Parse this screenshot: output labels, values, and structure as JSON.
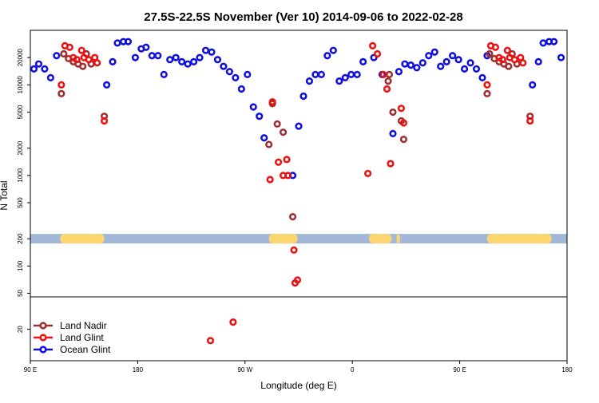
{
  "chart_data": {
    "type": "scatter",
    "title": "27.5S-22.5S November (Ver 10)   2014-09-06 to 2022-02-28",
    "xlabel": "Longitude (deg E)",
    "ylabel": "N Total",
    "x_ticks": [
      {
        "value": 90,
        "label": "90 E"
      },
      {
        "value": 180,
        "label": "180"
      },
      {
        "value": 270,
        "label": "90 W"
      },
      {
        "value": 360,
        "label": "0"
      },
      {
        "value": 450,
        "label": "90 E"
      },
      {
        "value": 540,
        "label": "180"
      }
    ],
    "xlim": [
      90,
      540
    ],
    "y_scale": "log",
    "y_ticks": [
      {
        "value": 20000,
        "label": "20000"
      },
      {
        "value": 10000,
        "label": "10000"
      },
      {
        "value": 5000,
        "label": "5000"
      },
      {
        "value": 2000,
        "label": "2000"
      },
      {
        "value": 1000,
        "label": "1000"
      },
      {
        "value": 500,
        "label": "500"
      },
      {
        "value": 200,
        "label": "200"
      },
      {
        "value": 100,
        "label": "100"
      },
      {
        "value": 50,
        "label": "50"
      },
      {
        "value": 20,
        "label": "20"
      }
    ],
    "ylim": [
      9,
      40000
    ],
    "panel_split": 50,
    "band_value": 200,
    "band_color": "#a3b8d8",
    "land_color": "#fcd670",
    "land_spans": [
      [
        115,
        152
      ],
      [
        290,
        314
      ],
      [
        374,
        393
      ],
      [
        397,
        400
      ],
      [
        473,
        527
      ]
    ],
    "legend": {
      "position": "bottom-left",
      "entries": [
        {
          "name": "Land Nadir",
          "color": "#a03030"
        },
        {
          "name": "Land Glint",
          "color": "#ee1111"
        },
        {
          "name": "Ocean Glint",
          "color": "#1010dd"
        }
      ]
    },
    "series": [
      {
        "name": "Land Nadir",
        "color": "#a03030",
        "points": [
          [
            116,
            8000
          ],
          [
            118,
            22000
          ],
          [
            122,
            19500
          ],
          [
            126,
            18000
          ],
          [
            130,
            17000
          ],
          [
            134,
            16000
          ],
          [
            137,
            22000
          ],
          [
            141,
            17000
          ],
          [
            152,
            4500
          ],
          [
            290,
            2200
          ],
          [
            293,
            6200
          ],
          [
            297,
            3700
          ],
          [
            302,
            3000
          ],
          [
            310,
            350
          ],
          [
            390,
            11000
          ],
          [
            391,
            13000
          ],
          [
            394,
            5000
          ],
          [
            401,
            4000
          ],
          [
            403,
            2500
          ],
          [
            473,
            8000
          ],
          [
            475,
            22000
          ],
          [
            479,
            19500
          ],
          [
            483,
            18000
          ],
          [
            487,
            17000
          ],
          [
            491,
            16000
          ],
          [
            494,
            22000
          ],
          [
            498,
            17000
          ],
          [
            509,
            4500
          ]
        ]
      },
      {
        "name": "Land Glint",
        "color": "#ee1111",
        "points": [
          [
            116,
            10000
          ],
          [
            119,
            27000
          ],
          [
            123,
            26000
          ],
          [
            126,
            20000
          ],
          [
            129,
            19000
          ],
          [
            133,
            24000
          ],
          [
            135,
            20000
          ],
          [
            139,
            19000
          ],
          [
            144,
            20000
          ],
          [
            146,
            17500
          ],
          [
            152,
            4000
          ],
          [
            241,
            15
          ],
          [
            260,
            24
          ],
          [
            291,
            900
          ],
          [
            293,
            6500
          ],
          [
            298,
            1400
          ],
          [
            302,
            1000
          ],
          [
            305,
            1500
          ],
          [
            306,
            1000
          ],
          [
            311,
            150
          ],
          [
            312,
            65
          ],
          [
            314,
            70
          ],
          [
            373,
            1050
          ],
          [
            377,
            27000
          ],
          [
            381,
            22000
          ],
          [
            386,
            13000
          ],
          [
            389,
            9000
          ],
          [
            392,
            1350
          ],
          [
            401,
            5500
          ],
          [
            403,
            3800
          ],
          [
            473,
            10000
          ],
          [
            476,
            27000
          ],
          [
            480,
            26000
          ],
          [
            483,
            20000
          ],
          [
            486,
            19000
          ],
          [
            490,
            24000
          ],
          [
            492,
            20000
          ],
          [
            496,
            19000
          ],
          [
            501,
            20000
          ],
          [
            503,
            17500
          ],
          [
            509,
            4000
          ]
        ]
      },
      {
        "name": "Ocean Glint",
        "color": "#1010dd",
        "points": [
          [
            93,
            15000
          ],
          [
            97,
            17000
          ],
          [
            102,
            15000
          ],
          [
            107,
            12000
          ],
          [
            112,
            21000
          ],
          [
            154,
            10000
          ],
          [
            159,
            18000
          ],
          [
            163,
            29000
          ],
          [
            168,
            30000
          ],
          [
            172,
            30000
          ],
          [
            178,
            20000
          ],
          [
            183,
            25000
          ],
          [
            187,
            26000
          ],
          [
            192,
            21000
          ],
          [
            197,
            21000
          ],
          [
            202,
            13000
          ],
          [
            207,
            19000
          ],
          [
            212,
            20000
          ],
          [
            217,
            18000
          ],
          [
            222,
            17000
          ],
          [
            227,
            18000
          ],
          [
            232,
            20000
          ],
          [
            237,
            24000
          ],
          [
            242,
            23000
          ],
          [
            247,
            19000
          ],
          [
            252,
            16000
          ],
          [
            257,
            14000
          ],
          [
            262,
            12000
          ],
          [
            267,
            9000
          ],
          [
            272,
            13000
          ],
          [
            277,
            5700
          ],
          [
            282,
            4500
          ],
          [
            286,
            2600
          ],
          [
            310,
            1000
          ],
          [
            315,
            3500
          ],
          [
            319,
            7500
          ],
          [
            324,
            11000
          ],
          [
            329,
            13000
          ],
          [
            334,
            13000
          ],
          [
            339,
            21000
          ],
          [
            344,
            24000
          ],
          [
            349,
            11000
          ],
          [
            354,
            12000
          ],
          [
            359,
            13000
          ],
          [
            364,
            13000
          ],
          [
            369,
            18000
          ],
          [
            378,
            20000
          ],
          [
            385,
            13000
          ],
          [
            394,
            2900
          ],
          [
            399,
            14000
          ],
          [
            404,
            17000
          ],
          [
            409,
            16500
          ],
          [
            414,
            15500
          ],
          [
            419,
            17500
          ],
          [
            424,
            21000
          ],
          [
            429,
            23000
          ],
          [
            434,
            16000
          ],
          [
            439,
            18000
          ],
          [
            444,
            21000
          ],
          [
            449,
            19000
          ],
          [
            454,
            15000
          ],
          [
            459,
            17500
          ],
          [
            464,
            15000
          ],
          [
            469,
            12000
          ],
          [
            473,
            21000
          ],
          [
            511,
            10000
          ],
          [
            516,
            18000
          ],
          [
            520,
            29000
          ],
          [
            525,
            30000
          ],
          [
            529,
            30000
          ],
          [
            535,
            20000
          ]
        ]
      }
    ]
  }
}
